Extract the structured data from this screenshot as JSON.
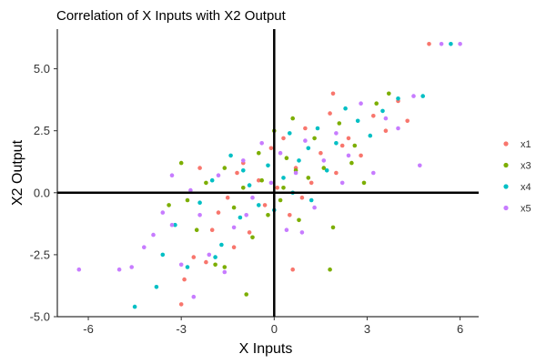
{
  "chart_data": {
    "type": "scatter",
    "title": "Correlation of X Inputs with X2 Output",
    "xlabel": "X Inputs",
    "ylabel": "X2 Output",
    "xlim": [
      -7,
      6.6
    ],
    "ylim": [
      -5,
      6.6
    ],
    "xticks": [
      -6,
      -3,
      0,
      3,
      6
    ],
    "xtick_labels": [
      "-6",
      "-3",
      "0",
      "3",
      "6"
    ],
    "yticks": [
      -5,
      -2.5,
      0,
      2.5,
      5
    ],
    "ytick_labels": [
      "-5.0",
      "-2.5",
      "0.0",
      "2.5",
      "5.0"
    ],
    "grid": false,
    "zero_lines": true,
    "legend_position": "right",
    "series": [
      {
        "name": "x1",
        "color": "#f8766d",
        "points": [
          [
            -3.0,
            -4.5
          ],
          [
            -2.9,
            -3.5
          ],
          [
            -2.6,
            -2.6
          ],
          [
            -2.2,
            -2.8
          ],
          [
            -2.0,
            -1.5
          ],
          [
            -1.8,
            -0.8
          ],
          [
            -1.5,
            -0.2
          ],
          [
            -1.2,
            0.8
          ],
          [
            -1.0,
            1.2
          ],
          [
            -0.8,
            -1.6
          ],
          [
            -0.5,
            0.5
          ],
          [
            -0.3,
            -0.5
          ],
          [
            -0.1,
            1.8
          ],
          [
            0.1,
            0.2
          ],
          [
            0.3,
            2.2
          ],
          [
            0.5,
            -0.9
          ],
          [
            0.7,
            1.0
          ],
          [
            1.0,
            2.6
          ],
          [
            1.2,
            0.4
          ],
          [
            1.5,
            1.6
          ],
          [
            1.8,
            3.2
          ],
          [
            2.0,
            0.8
          ],
          [
            2.4,
            2.2
          ],
          [
            2.8,
            1.5
          ],
          [
            3.2,
            3.1
          ],
          [
            3.6,
            2.5
          ],
          [
            4.0,
            3.7
          ],
          [
            4.3,
            2.9
          ],
          [
            5.0,
            6.0
          ],
          [
            0.6,
            -3.1
          ],
          [
            1.9,
            4.0
          ],
          [
            -2.4,
            1.0
          ],
          [
            -1.3,
            -2.2
          ],
          [
            0.9,
            -0.2
          ],
          [
            2.2,
            1.9
          ]
        ]
      },
      {
        "name": "x3",
        "color": "#7cae00",
        "points": [
          [
            -3.0,
            1.2
          ],
          [
            -2.8,
            -0.3
          ],
          [
            -2.5,
            -1.5
          ],
          [
            -2.2,
            0.4
          ],
          [
            -1.9,
            -2.9
          ],
          [
            -1.6,
            1.0
          ],
          [
            -1.3,
            -0.6
          ],
          [
            -1.0,
            0.2
          ],
          [
            -0.7,
            -1.8
          ],
          [
            -0.5,
            1.6
          ],
          [
            -0.2,
            -0.9
          ],
          [
            0.0,
            2.5
          ],
          [
            0.2,
            -0.3
          ],
          [
            0.4,
            1.4
          ],
          [
            0.6,
            3.0
          ],
          [
            0.8,
            -1.1
          ],
          [
            1.1,
            0.6
          ],
          [
            1.3,
            2.2
          ],
          [
            1.6,
            1.0
          ],
          [
            1.9,
            -1.4
          ],
          [
            2.1,
            2.8
          ],
          [
            2.5,
            1.2
          ],
          [
            2.9,
            0.4
          ],
          [
            3.3,
            3.6
          ],
          [
            3.7,
            4.0
          ],
          [
            -0.9,
            -4.1
          ],
          [
            -1.6,
            -3.0
          ],
          [
            0.7,
            0.9
          ],
          [
            1.8,
            -3.1
          ],
          [
            -3.4,
            -0.5
          ],
          [
            0.3,
            0.2
          ],
          [
            2.6,
            1.9
          ],
          [
            -0.4,
            0.5
          ]
        ]
      },
      {
        "name": "x4",
        "color": "#00bfc4",
        "points": [
          [
            -4.5,
            -4.6
          ],
          [
            -3.8,
            -3.8
          ],
          [
            -3.6,
            -2.5
          ],
          [
            -3.2,
            -1.3
          ],
          [
            -2.8,
            -3.0
          ],
          [
            -2.4,
            -0.4
          ],
          [
            -2.0,
            0.5
          ],
          [
            -1.7,
            -2.1
          ],
          [
            -1.4,
            1.5
          ],
          [
            -1.1,
            -1.0
          ],
          [
            -0.8,
            0.3
          ],
          [
            -0.5,
            -0.5
          ],
          [
            -0.2,
            1.1
          ],
          [
            0.0,
            -0.7
          ],
          [
            0.3,
            0.6
          ],
          [
            0.5,
            2.4
          ],
          [
            0.8,
            1.3
          ],
          [
            1.1,
            1.8
          ],
          [
            1.4,
            2.6
          ],
          [
            1.7,
            0.9
          ],
          [
            2.0,
            2.0
          ],
          [
            2.3,
            3.4
          ],
          [
            2.7,
            2.9
          ],
          [
            3.1,
            2.3
          ],
          [
            3.5,
            3.3
          ],
          [
            4.0,
            3.8
          ],
          [
            4.8,
            3.9
          ],
          [
            5.7,
            6.0
          ],
          [
            -1.9,
            -2.6
          ],
          [
            0.6,
            0.0
          ],
          [
            -1.0,
            0.9
          ],
          [
            1.2,
            -0.3
          ]
        ]
      },
      {
        "name": "x5",
        "color": "#c77cff",
        "points": [
          [
            -6.3,
            -3.1
          ],
          [
            -5.0,
            -3.1
          ],
          [
            -4.6,
            -3.0
          ],
          [
            -4.2,
            -2.2
          ],
          [
            -3.9,
            -1.7
          ],
          [
            -3.6,
            -0.8
          ],
          [
            -3.3,
            -1.3
          ],
          [
            -3.0,
            -2.9
          ],
          [
            -2.7,
            0.1
          ],
          [
            -2.4,
            -0.9
          ],
          [
            -2.1,
            -2.5
          ],
          [
            -1.8,
            0.7
          ],
          [
            -1.6,
            -3.2
          ],
          [
            -1.3,
            -1.4
          ],
          [
            -1.0,
            1.3
          ],
          [
            -0.7,
            -0.2
          ],
          [
            -0.4,
            2.0
          ],
          [
            -0.1,
            0.4
          ],
          [
            0.2,
            1.6
          ],
          [
            0.4,
            -1.5
          ],
          [
            0.7,
            0.8
          ],
          [
            1.0,
            2.1
          ],
          [
            1.3,
            -0.6
          ],
          [
            1.6,
            1.3
          ],
          [
            2.0,
            2.4
          ],
          [
            2.4,
            1.5
          ],
          [
            2.8,
            3.6
          ],
          [
            3.2,
            0.8
          ],
          [
            3.6,
            3.0
          ],
          [
            4.0,
            2.6
          ],
          [
            4.5,
            3.9
          ],
          [
            4.7,
            1.1
          ],
          [
            5.4,
            6.0
          ],
          [
            6.0,
            6.0
          ],
          [
            -2.6,
            -4.2
          ],
          [
            -3.3,
            0.7
          ],
          [
            0.9,
            -1.6
          ],
          [
            -0.9,
            -0.9
          ],
          [
            2.2,
            0.4
          ]
        ]
      }
    ]
  }
}
